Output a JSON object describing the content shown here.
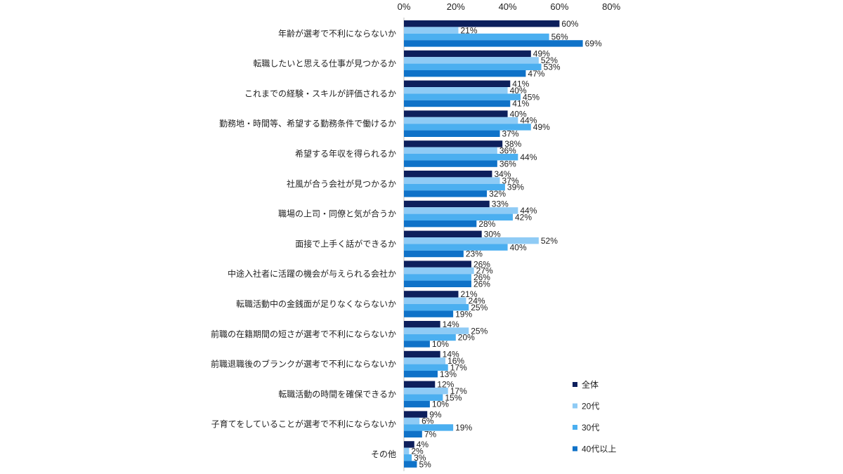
{
  "chart_data": {
    "type": "bar",
    "orientation": "horizontal",
    "title": "",
    "xlim": [
      0,
      80
    ],
    "x_ticks": [
      "0%",
      "20%",
      "40%",
      "60%",
      "80%"
    ],
    "x_tick_position": "top",
    "grid": false,
    "legend_position": "bottom-right",
    "categories": [
      "年齢が選考で不利にならないか",
      "転職したいと思える仕事が見つかるか",
      "これまでの経験・スキルが評価されるか",
      "勤務地・時間等、希望する勤務条件で働けるか",
      "希望する年収を得られるか",
      "社風が合う会社が見つかるか",
      "職場の上司・同僚と気が合うか",
      "面接で上手く話ができるか",
      "中途入社者に活躍の機会が与えられる会社か",
      "転職活動中の金銭面が足りなくならないか",
      "前職の在籍期間の短さが選考で不利にならないか",
      "前職退職後のブランクが選考で不利にならないか",
      "転職活動の時間を確保できるか",
      "子育てをしていることが選考で不利にならないか",
      "その他"
    ],
    "series": [
      {
        "name": "全体",
        "color": "#0d1f5c",
        "values": [
          60,
          49,
          41,
          40,
          38,
          34,
          33,
          30,
          26,
          21,
          14,
          14,
          12,
          9,
          4
        ]
      },
      {
        "name": "20代",
        "color": "#8fcbf5",
        "values": [
          21,
          52,
          40,
          44,
          36,
          37,
          44,
          52,
          27,
          24,
          25,
          16,
          17,
          6,
          2
        ]
      },
      {
        "name": "30代",
        "color": "#4baff0",
        "values": [
          56,
          53,
          45,
          49,
          44,
          39,
          42,
          40,
          26,
          25,
          20,
          17,
          15,
          19,
          3
        ]
      },
      {
        "name": "40代以上",
        "color": "#0f72c8",
        "values": [
          69,
          47,
          41,
          37,
          36,
          32,
          28,
          23,
          26,
          19,
          10,
          13,
          10,
          7,
          5
        ]
      }
    ],
    "value_suffix": "%"
  }
}
